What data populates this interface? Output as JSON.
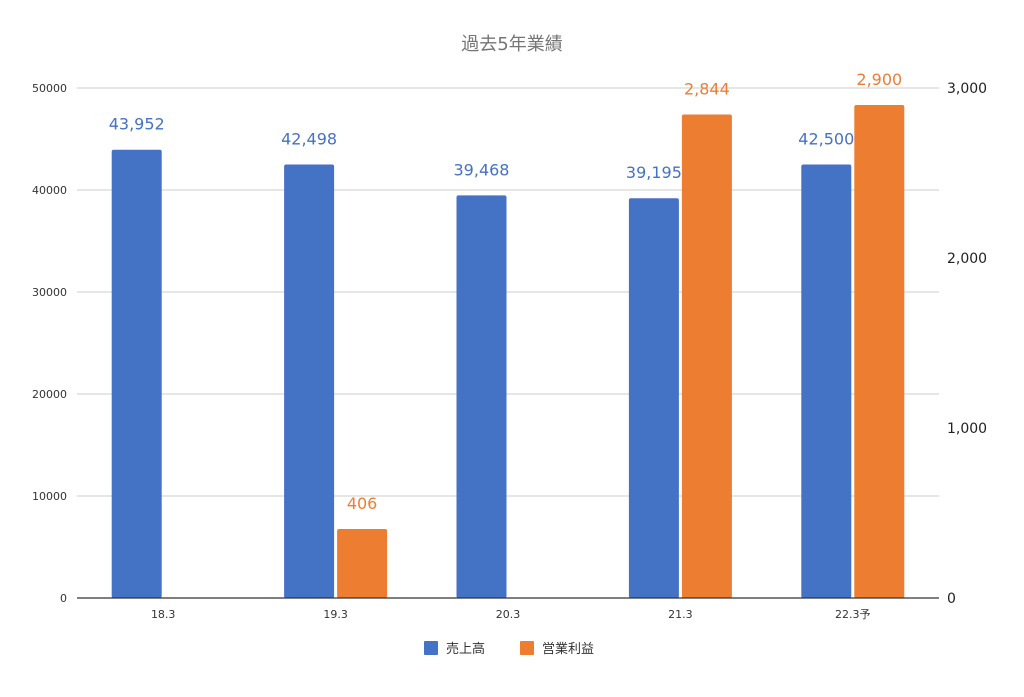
{
  "chart_data": {
    "type": "bar",
    "title": "過去5年業績",
    "categories": [
      "18.3",
      "19.3",
      "20.3",
      "21.3",
      "22.3予"
    ],
    "series": [
      {
        "name": "売上高",
        "axis": "left",
        "color": "#4472C4",
        "values": [
          43952,
          42498,
          39468,
          39195,
          42500
        ],
        "labels": [
          "43,952",
          "42,498",
          "39,468",
          "39,195",
          "42,500"
        ]
      },
      {
        "name": "営業利益",
        "axis": "right",
        "color": "#ED7D31",
        "values": [
          null,
          406,
          null,
          2844,
          2900
        ],
        "labels": [
          "",
          "406",
          "",
          "2,844",
          "2,900"
        ]
      }
    ],
    "y_left": {
      "min": 0,
      "max": 50000,
      "ticks": [
        0,
        10000,
        20000,
        30000,
        40000,
        50000
      ],
      "tick_labels": [
        "0",
        "10000",
        "20000",
        "30000",
        "40000",
        "50000"
      ]
    },
    "y_right": {
      "min": 0,
      "max": 3000,
      "ticks": [
        0,
        1000,
        2000,
        3000
      ],
      "tick_labels": [
        "0",
        "1,000",
        "2,000",
        "3,000"
      ]
    },
    "grid": true,
    "legend_position": "bottom"
  }
}
